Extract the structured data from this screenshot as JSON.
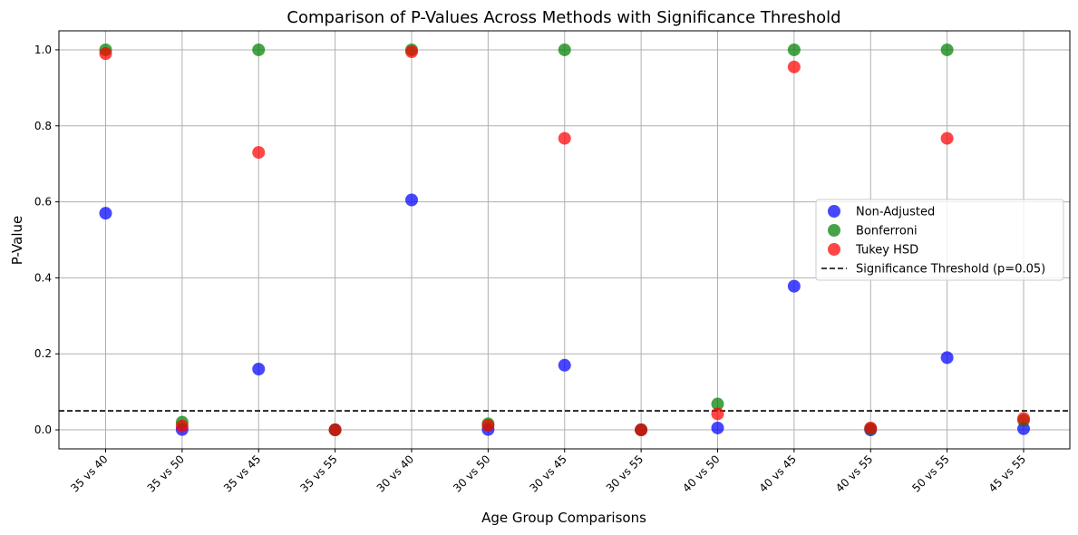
{
  "chart_data": {
    "type": "scatter",
    "title": "Comparison of P-Values Across Methods with Significance Threshold",
    "xlabel": "Age Group Comparisons",
    "ylabel": "P-Value",
    "categories": [
      "35 vs 40",
      "35 vs 50",
      "35 vs 45",
      "35 vs 55",
      "30 vs 40",
      "30 vs 50",
      "30 vs 45",
      "30 vs 55",
      "40 vs 50",
      "40 vs 45",
      "40 vs 55",
      "50 vs 55",
      "45 vs 55"
    ],
    "ylim": [
      -0.05,
      1.05
    ],
    "yticks": [
      0.0,
      0.2,
      0.4,
      0.6,
      0.8,
      1.0
    ],
    "ytick_labels": [
      "0.0",
      "0.2",
      "0.4",
      "0.6",
      "0.8",
      "1.0"
    ],
    "grid": true,
    "legend_position": "center-right",
    "series": [
      {
        "name": "Non-Adjusted",
        "color": "#0000ff",
        "values": [
          0.57,
          0.001,
          0.16,
          0.0,
          0.605,
          0.001,
          0.17,
          0.0,
          0.005,
          0.378,
          0.0,
          0.19,
          0.003
        ]
      },
      {
        "name": "Bonferroni",
        "color": "#008000",
        "values": [
          1.0,
          0.02,
          1.0,
          0.0,
          1.0,
          0.016,
          1.0,
          0.0,
          0.068,
          1.0,
          0.003,
          1.0,
          0.025
        ]
      },
      {
        "name": "Tukey HSD",
        "color": "#ff0000",
        "values": [
          0.99,
          0.01,
          0.73,
          0.0,
          0.995,
          0.012,
          0.767,
          0.0,
          0.042,
          0.955,
          0.005,
          0.767,
          0.03
        ]
      }
    ],
    "threshold": {
      "label": "Significance Threshold (p=0.05)",
      "value": 0.05,
      "color": "#000000",
      "style": "dashed"
    }
  }
}
